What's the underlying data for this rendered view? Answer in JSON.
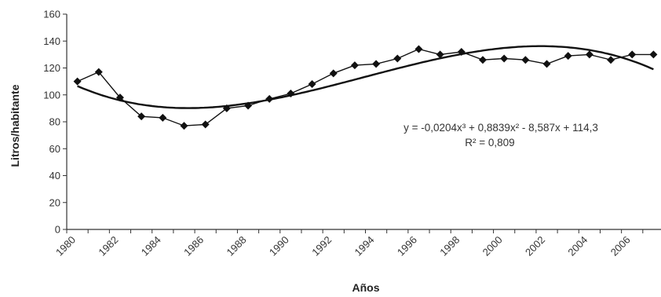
{
  "chart_data": {
    "type": "line",
    "title": "",
    "xlabel": "Años",
    "ylabel": "Litros/habitante",
    "ylim": [
      0,
      160
    ],
    "yticks": [
      0,
      20,
      40,
      60,
      80,
      100,
      120,
      140,
      160
    ],
    "xlim": [
      1980,
      2008
    ],
    "xticks": [
      "1980",
      "1982",
      "1984",
      "1986",
      "1988",
      "1990",
      "1992",
      "1994",
      "1996",
      "1998",
      "2000",
      "2002",
      "2004",
      "2006"
    ],
    "grid": false,
    "legend": "none",
    "series": [
      {
        "name": "",
        "style": "line-markers",
        "color": "#111111",
        "x": [
          1980.5,
          1981.5,
          1982.5,
          1983.5,
          1984.5,
          1985.5,
          1986.5,
          1987.5,
          1988.5,
          1989.5,
          1990.5,
          1991.5,
          1992.5,
          1993.5,
          1994.5,
          1995.5,
          1996.5,
          1997.5,
          1998.5,
          1999.5,
          2000.5,
          2001.5,
          2002.5,
          2003.5,
          2004.5,
          2005.5,
          2006.5,
          2007.5
        ],
        "values": [
          110,
          117,
          98,
          84,
          83,
          77,
          78,
          90,
          92,
          97,
          101,
          108,
          116,
          122,
          123,
          127,
          134,
          130,
          132,
          126,
          127,
          126,
          123,
          129,
          130,
          126,
          130,
          130
        ]
      },
      {
        "name": "",
        "style": "trendline",
        "color": "#111111",
        "equation": "y = -0,0204x³ + 0,8839x² - 8,587x + 114,3",
        "coefficients": [
          -0.0204,
          0.8839,
          -8.587,
          114.3
        ]
      }
    ],
    "annotations": [
      "y = -0,0204x³ + 0,8839x² - 8,587x + 114,3",
      "R² = 0,809"
    ]
  }
}
